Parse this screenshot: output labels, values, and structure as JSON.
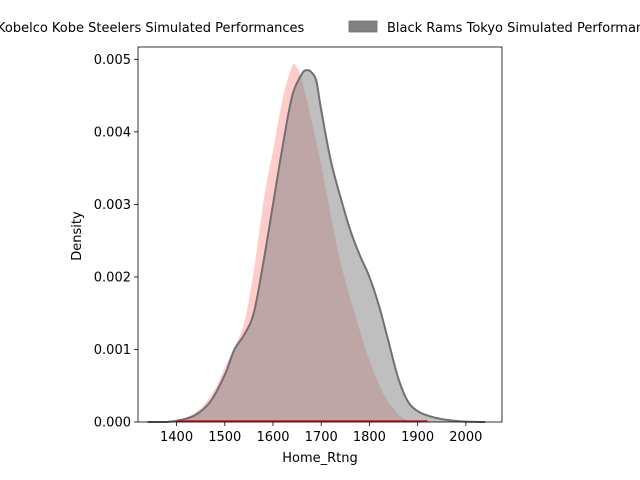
{
  "chart_data": {
    "type": "area",
    "title": "",
    "xlabel": "Home_Rtng",
    "ylabel": "Density",
    "xlim": [
      1320,
      2075
    ],
    "ylim": [
      0,
      0.00517
    ],
    "xticks": [
      1400,
      1500,
      1600,
      1700,
      1800,
      1900,
      2000
    ],
    "yticks": [
      0.0,
      0.001,
      0.002,
      0.003,
      0.004,
      0.005
    ],
    "ytick_labels": [
      "0.000",
      "0.001",
      "0.002",
      "0.003",
      "0.004",
      "0.005"
    ],
    "grid": false,
    "legend": {
      "placement": "top-center-outside",
      "entries": [
        "Kobelco Kobe Steelers Simulated Performances",
        "Black Rams Tokyo Simulated Performances"
      ]
    },
    "series": [
      {
        "name": "Kobelco Kobe Steelers Simulated Performances",
        "fill": "#ff9999",
        "edge": "#ffffff",
        "x": [
          1390,
          1420,
          1450,
          1480,
          1500,
          1520,
          1540,
          1560,
          1580,
          1600,
          1620,
          1640,
          1650,
          1660,
          1680,
          1700,
          1720,
          1740,
          1760,
          1780,
          1800,
          1830,
          1860,
          1880,
          1900,
          1920
        ],
        "values": [
          0.0,
          7e-05,
          0.0002,
          0.00048,
          0.00078,
          0.00105,
          0.0014,
          0.00215,
          0.0031,
          0.0038,
          0.0045,
          0.00493,
          0.0049,
          0.00475,
          0.0042,
          0.0036,
          0.0029,
          0.00225,
          0.00175,
          0.0013,
          0.00088,
          0.0004,
          0.00012,
          3e-05,
          5e-06,
          0.0
        ]
      },
      {
        "name": "Black Rams Tokyo Simulated Performances",
        "fill": "#808080",
        "edge": "#707070",
        "x": [
          1340,
          1380,
          1410,
          1440,
          1470,
          1500,
          1520,
          1540,
          1560,
          1580,
          1600,
          1620,
          1640,
          1660,
          1670,
          1680,
          1690,
          1700,
          1720,
          1740,
          1760,
          1780,
          1800,
          1820,
          1840,
          1860,
          1880,
          1900,
          1920,
          1950,
          1980,
          2000,
          2040
        ],
        "values": [
          0.0,
          0.0,
          3e-05,
          0.0001,
          0.00028,
          0.00065,
          0.001,
          0.0012,
          0.0015,
          0.0022,
          0.003,
          0.0038,
          0.0045,
          0.0048,
          0.00485,
          0.00482,
          0.0047,
          0.0043,
          0.0036,
          0.0031,
          0.00265,
          0.0023,
          0.002,
          0.0016,
          0.0011,
          0.0006,
          0.00028,
          0.00015,
          9e-05,
          4e-05,
          1.5e-05,
          5e-06,
          0.0
        ]
      }
    ]
  }
}
